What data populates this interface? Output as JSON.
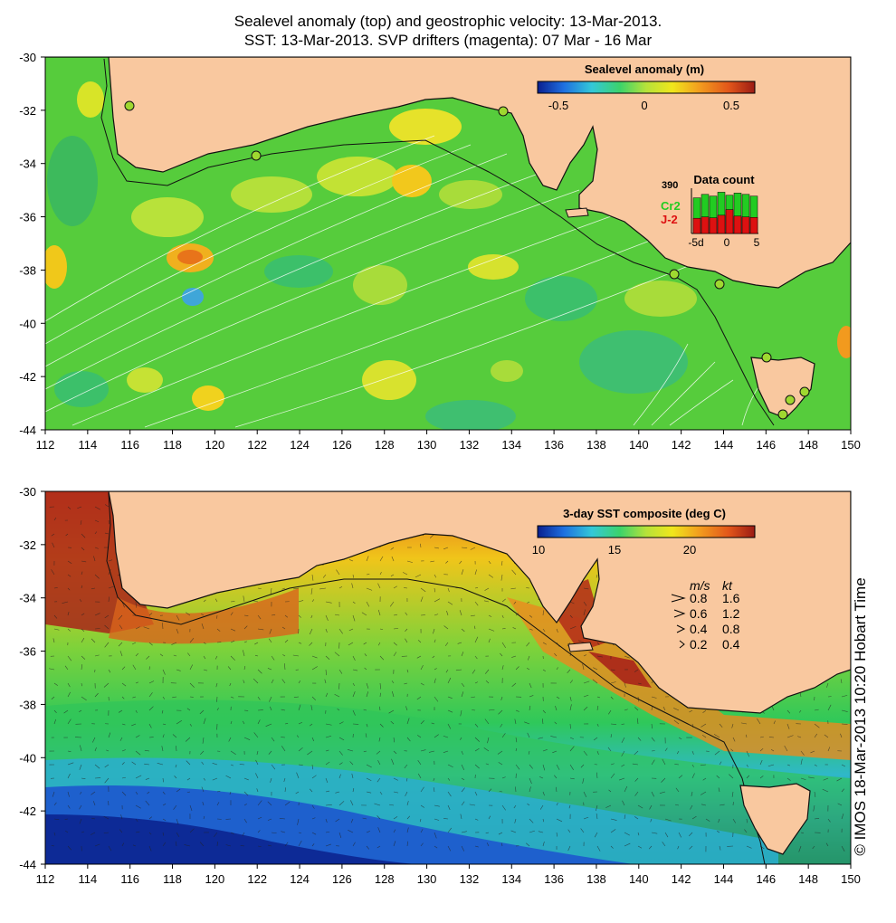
{
  "header": {
    "title_line1": "Sealevel anomaly (top) and geostrophic velocity: 13-Mar-2013.",
    "title_line2": "SST: 13-Mar-2013. SVP drifters (magenta): 07 Mar - 16 Mar"
  },
  "axes": {
    "lon_ticks": [
      "112",
      "114",
      "116",
      "118",
      "120",
      "122",
      "124",
      "126",
      "128",
      "130",
      "132",
      "134",
      "136",
      "138",
      "140",
      "142",
      "144",
      "146",
      "148",
      "150"
    ],
    "lat_ticks": [
      "-30",
      "-32",
      "-34",
      "-36",
      "-38",
      "-40",
      "-42",
      "-44"
    ]
  },
  "top_panel": {
    "colorbar_title": "Sealevel anomaly (m)",
    "colorbar_ticks": [
      "-0.5",
      "0",
      "0.5"
    ],
    "colorbar_colors": [
      "#0a1f8f",
      "#1e6fe0",
      "#34c8d8",
      "#3cd36a",
      "#b6e23a",
      "#f0e61c",
      "#f29a1e",
      "#e2561a",
      "#9b1c15"
    ],
    "data_count": {
      "title": "Data count",
      "count_value": "390",
      "label_green": "Cr2",
      "label_red": "J-2",
      "x_ticks": [
        "-5d",
        "0",
        "5"
      ],
      "green_color": "#22cc22",
      "red_color": "#dd1111"
    }
  },
  "bottom_panel": {
    "colorbar_title": "3-day SST composite (deg C)",
    "colorbar_ticks": [
      "10",
      "15",
      "20"
    ],
    "colorbar_colors": [
      "#0a1f8f",
      "#1e6fe0",
      "#34c8d8",
      "#3cd36a",
      "#b6e23a",
      "#f0e61c",
      "#f29a1e",
      "#e2561a",
      "#9b1c15"
    ],
    "speed_legend": {
      "header_ms": "m/s",
      "header_kt": "kt",
      "rows": [
        {
          "ms": "0.8",
          "kt": "1.6"
        },
        {
          "ms": "0.6",
          "kt": "1.2"
        },
        {
          "ms": "0.4",
          "kt": "0.8"
        },
        {
          "ms": "0.2",
          "kt": "0.4"
        }
      ]
    }
  },
  "credit": "© IMOS 18-Mar-2013 10:20 Hobart Time",
  "colors": {
    "land": "#f9c89f",
    "coastline": "#111111",
    "grid": "#ffffff"
  }
}
